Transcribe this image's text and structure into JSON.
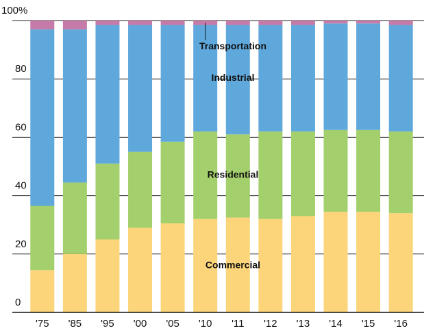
{
  "chart_data": {
    "type": "stacked_bar",
    "categories": [
      "'75",
      "'85",
      "'95",
      "'00",
      "'05",
      "'10",
      "'11",
      "'12",
      "'13",
      "'14",
      "'15",
      "'16"
    ],
    "series": [
      {
        "name": "Commercial",
        "color": "#fcd57a",
        "values": [
          14.5,
          20,
          25,
          29,
          30.5,
          32,
          32.5,
          32,
          33,
          34.5,
          34.5,
          34
        ]
      },
      {
        "name": "Residential",
        "color": "#a3cf6c",
        "values": [
          22,
          24.5,
          26,
          26,
          28,
          30,
          28.5,
          30,
          29,
          28,
          28,
          28
        ]
      },
      {
        "name": "Industrial",
        "color": "#5fa8dc",
        "values": [
          60.5,
          52.5,
          47.5,
          43.5,
          40,
          36.5,
          37.5,
          36.5,
          36.5,
          36.5,
          36.5,
          36.5
        ]
      },
      {
        "name": "Transportation",
        "color": "#c67aa8",
        "values": [
          3,
          3,
          1.5,
          1.5,
          1.5,
          1.5,
          1.5,
          1.5,
          1.5,
          1,
          1,
          1.5
        ]
      }
    ],
    "ylim": [
      0,
      100
    ],
    "yticks": [
      0,
      20,
      40,
      60,
      80,
      {
        "value": 100,
        "label": "100%"
      }
    ],
    "grid": true
  }
}
